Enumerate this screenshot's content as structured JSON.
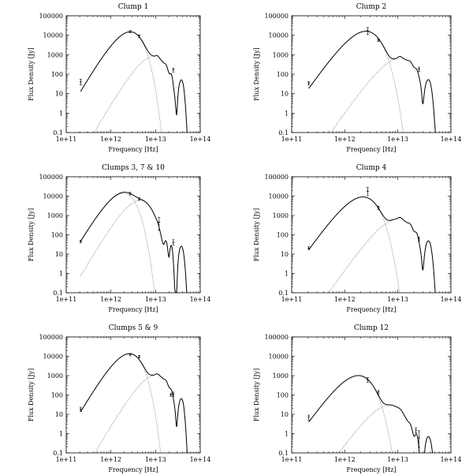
{
  "figure": {
    "panels": [
      {
        "title": "Clump 1",
        "xlabel": "Frequency [Hz]",
        "ylabel": "Flux Density [Jy]"
      },
      {
        "title": "Clump 2",
        "xlabel": "Frequency [Hz]",
        "ylabel": "Flux Density [Jy]"
      },
      {
        "title": "Clumps 3, 7 & 10",
        "xlabel": "Frequency [Hz]",
        "ylabel": "Flux Density [Jy]"
      },
      {
        "title": "Clump 4",
        "xlabel": "Frequency [Hz]",
        "ylabel": "Flux Density [Jy]"
      },
      {
        "title": "Clumps 5 & 9",
        "xlabel": "Frequency [Hz]",
        "ylabel": "Flux Density [Jy]"
      },
      {
        "title": "Clump 12",
        "xlabel": "Frequency [Hz]",
        "ylabel": "Flux Density [Jy]"
      }
    ]
  },
  "chart_data": [
    {
      "type": "line",
      "title": "Clump 1",
      "xlabel": "Frequency [Hz]",
      "ylabel": "Flux Density [Jy]",
      "xscale": "log",
      "yscale": "log",
      "xlim": [
        100000000000.0,
        100000000000000.0
      ],
      "ylim": [
        0.1,
        100000
      ],
      "xticks": [
        "1e+11",
        "1e+12",
        "1e+13",
        "1e+14"
      ],
      "yticks": [
        "0.1",
        "1",
        "10",
        "100",
        "1000",
        "10000",
        "100000"
      ],
      "cold": {
        "peak_freq": 2700000000000.0,
        "peak_flux": 15000,
        "beta": 2.0
      },
      "warm": {
        "peak_freq": 9000000000000.0,
        "peak_flux": 800,
        "beta": 2.0
      },
      "pah": {
        "amp": 160,
        "dip_depth": 0.12,
        "f_start": 12000000000000.0,
        "f_end": 47000000000000.0
      },
      "observations": [
        {
          "freq": 210000000000.0,
          "flux": 40,
          "err_lo": 28,
          "err_hi": 55
        },
        {
          "freq": 2700000000000.0,
          "flux": 15500,
          "err_lo": 13500,
          "err_hi": 17500
        },
        {
          "freq": 4300000000000.0,
          "flux": 9000,
          "err_lo": 7800,
          "err_hi": 10500
        },
        {
          "freq": 25000000000000.0,
          "flux": 170,
          "err_lo": 130,
          "err_hi": 200
        }
      ]
    },
    {
      "type": "line",
      "title": "Clump 2",
      "xlabel": "Frequency [Hz]",
      "ylabel": "Flux Density [Jy]",
      "xscale": "log",
      "yscale": "log",
      "xlim": [
        100000000000.0,
        100000000000000.0
      ],
      "ylim": [
        0.1,
        100000
      ],
      "xticks": [
        "1e+11",
        "1e+12",
        "1e+13",
        "1e+14"
      ],
      "yticks": [
        "0.1",
        "1",
        "10",
        "100",
        "1000",
        "10000",
        "100000"
      ],
      "cold": {
        "peak_freq": 2500000000000.0,
        "peak_flux": 16000,
        "beta": 2.0
      },
      "warm": {
        "peak_freq": 11000000000000.0,
        "peak_flux": 650,
        "beta": 2.0
      },
      "pah": {
        "amp": 160,
        "dip_depth": 0.12,
        "f_start": 12000000000000.0,
        "f_end": 47000000000000.0
      },
      "observations": [
        {
          "freq": 210000000000.0,
          "flux": 35,
          "err_lo": 28,
          "err_hi": 42
        },
        {
          "freq": 2700000000000.0,
          "flux": 17000,
          "err_lo": 11000,
          "err_hi": 25000
        },
        {
          "freq": 4300000000000.0,
          "flux": 5500,
          "err_lo": 4800,
          "err_hi": 6300
        },
        {
          "freq": 25000000000000.0,
          "flux": 180,
          "err_lo": 140,
          "err_hi": 230
        }
      ]
    },
    {
      "type": "line",
      "title": "Clumps 3, 7 & 10",
      "xlabel": "Frequency [Hz]",
      "ylabel": "Flux Density [Jy]",
      "xscale": "log",
      "yscale": "log",
      "xlim": [
        100000000000.0,
        100000000000000.0
      ],
      "ylim": [
        0.1,
        100000
      ],
      "xticks": [
        "1e+11",
        "1e+12",
        "1e+13",
        "1e+14"
      ],
      "yticks": [
        "0.1",
        "1",
        "10",
        "100",
        "1000",
        "10000",
        "100000"
      ],
      "cold": {
        "peak_freq": 1900000000000.0,
        "peak_flux": 14000,
        "beta": 2.0
      },
      "warm": {
        "peak_freq": 4500000000000.0,
        "peak_flux": 6000,
        "beta": 2.0
      },
      "pah": {
        "amp": 80,
        "dip_depth": 0.05,
        "f_start": 12000000000000.0,
        "f_end": 47000000000000.0
      },
      "observations": [
        {
          "freq": 210000000000.0,
          "flux": 45,
          "err_lo": 38,
          "err_hi": 53
        },
        {
          "freq": 2700000000000.0,
          "flux": 13500,
          "err_lo": 11500,
          "err_hi": 15500
        },
        {
          "freq": 4300000000000.0,
          "flux": 7000,
          "err_lo": 6000,
          "err_hi": 8200
        },
        {
          "freq": 12000000000000.0,
          "flux": 450,
          "err_lo": 170,
          "err_hi": 800
        },
        {
          "freq": 25000000000000.0,
          "flux": 40,
          "err_lo": 30,
          "err_hi": 55
        }
      ]
    },
    {
      "type": "line",
      "title": "Clump 4",
      "xlabel": "Frequency [Hz]",
      "ylabel": "Flux Density [Jy]",
      "xscale": "log",
      "yscale": "log",
      "xlim": [
        100000000000.0,
        100000000000000.0
      ],
      "ylim": [
        0.1,
        100000
      ],
      "xticks": [
        "1e+11",
        "1e+12",
        "1e+13",
        "1e+14"
      ],
      "yticks": [
        "0.1",
        "1",
        "10",
        "100",
        "1000",
        "10000",
        "100000"
      ],
      "cold": {
        "peak_freq": 2200000000000.0,
        "peak_flux": 9000,
        "beta": 2.0
      },
      "warm": {
        "peak_freq": 10000000000000.0,
        "peak_flux": 650,
        "beta": 2.0
      },
      "pah": {
        "amp": 150,
        "dip_depth": 0.12,
        "f_start": 12000000000000.0,
        "f_end": 47000000000000.0
      },
      "observations": [
        {
          "freq": 210000000000.0,
          "flux": 20,
          "err_lo": 17,
          "err_hi": 24
        },
        {
          "freq": 2700000000000.0,
          "flux": 18000,
          "err_lo": 11000,
          "err_hi": 28000
        },
        {
          "freq": 4300000000000.0,
          "flux": 2500,
          "err_lo": 2000,
          "err_hi": 3000
        },
        {
          "freq": 25000000000000.0,
          "flux": 60,
          "err_lo": 48,
          "err_hi": 75
        }
      ]
    },
    {
      "type": "line",
      "title": "Clumps 5 & 9",
      "xlabel": "Frequency [Hz]",
      "ylabel": "Flux Density [Jy]",
      "xscale": "log",
      "yscale": "log",
      "xlim": [
        100000000000.0,
        100000000000000.0
      ],
      "ylim": [
        0.1,
        100000
      ],
      "xticks": [
        "1e+11",
        "1e+12",
        "1e+13",
        "1e+14"
      ],
      "yticks": [
        "0.1",
        "1",
        "10",
        "100",
        "1000",
        "10000",
        "100000"
      ],
      "cold": {
        "peak_freq": 2600000000000.0,
        "peak_flux": 13500,
        "beta": 2.0
      },
      "warm": {
        "peak_freq": 10000000000000.0,
        "peak_flux": 1050,
        "beta": 2.0
      },
      "pah": {
        "amp": 200,
        "dip_depth": 0.12,
        "f_start": 12000000000000.0,
        "f_end": 47000000000000.0
      },
      "observations": [
        {
          "freq": 210000000000.0,
          "flux": 18,
          "err_lo": 14,
          "err_hi": 23
        },
        {
          "freq": 2700000000000.0,
          "flux": 12000,
          "err_lo": 10500,
          "err_hi": 13800
        },
        {
          "freq": 4300000000000.0,
          "flux": 9500,
          "err_lo": 8200,
          "err_hi": 11000
        },
        {
          "freq": 22000000000000.0,
          "flux": 100,
          "err_lo": 85,
          "err_hi": 120
        },
        {
          "freq": 25000000000000.0,
          "flux": 110,
          "err_lo": 85,
          "err_hi": 140
        }
      ]
    },
    {
      "type": "line",
      "title": "Clump 12",
      "xlabel": "Frequency [Hz]",
      "ylabel": "Flux Density [Jy]",
      "xscale": "log",
      "yscale": "log",
      "xlim": [
        100000000000.0,
        100000000000000.0
      ],
      "ylim": [
        0.1,
        100000
      ],
      "xticks": [
        "1e+11",
        "1e+12",
        "1e+13",
        "1e+14"
      ],
      "yticks": [
        "0.1",
        "1",
        "10",
        "100",
        "1000",
        "10000",
        "100000"
      ],
      "cold": {
        "peak_freq": 1800000000000.0,
        "peak_flux": 1000,
        "beta": 2.0
      },
      "warm": {
        "peak_freq": 7000000000000.0,
        "peak_flux": 30,
        "beta": 2.0
      },
      "pah": {
        "amp": 2.2,
        "dip_depth": 0.1,
        "f_start": 12000000000000.0,
        "f_end": 47000000000000.0
      },
      "observations": [
        {
          "freq": 210000000000.0,
          "flux": 7,
          "err_lo": 5,
          "err_hi": 9
        },
        {
          "freq": 2700000000000.0,
          "flux": 600,
          "err_lo": 450,
          "err_hi": 800
        },
        {
          "freq": 4300000000000.0,
          "flux": 140,
          "err_lo": 110,
          "err_hi": 170
        },
        {
          "freq": 22000000000000.0,
          "flux": 1.5,
          "err_lo": 1.1,
          "err_hi": 2.0
        },
        {
          "freq": 25000000000000.0,
          "flux": 0.6,
          "err_lo": 0.2,
          "err_hi": 1.4
        }
      ]
    }
  ]
}
